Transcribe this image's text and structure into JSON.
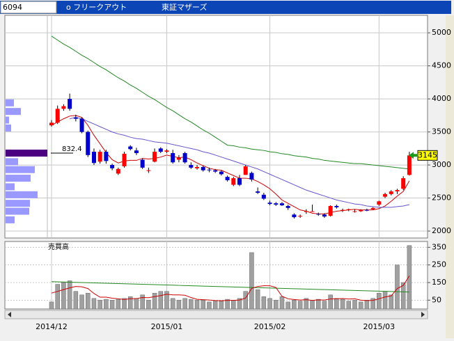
{
  "header": {
    "code": "6094",
    "name": "o フリークアウト",
    "market": "東証マザーズ"
  },
  "chart_data": {
    "type": "candlestick",
    "categories": [
      "2014/12",
      null,
      null,
      null,
      null,
      null,
      null,
      null,
      null,
      null,
      null,
      null,
      null,
      null,
      null,
      null,
      null,
      null,
      null,
      "2015/01",
      null,
      null,
      null,
      null,
      null,
      null,
      null,
      null,
      null,
      null,
      null,
      null,
      null,
      null,
      null,
      null,
      "2015/02",
      null,
      null,
      null,
      null,
      null,
      null,
      null,
      null,
      null,
      null,
      null,
      null,
      null,
      null,
      null,
      null,
      null,
      "2015/03",
      null,
      null,
      null,
      null,
      null
    ],
    "open": [
      3600,
      3640,
      3850,
      4000,
      3720,
      3700,
      3500,
      3200,
      3050,
      3200,
      3000,
      2870,
      2980,
      3280,
      3220,
      3080,
      2910,
      3050,
      3250,
      3200,
      3180,
      3080,
      3180,
      3000,
      2950,
      2970,
      2930,
      2920,
      2900,
      2820,
      2700,
      2800,
      2850,
      2880,
      2600,
      2550,
      2430,
      2420,
      2420,
      2380,
      2250,
      2220,
      2290,
      2300,
      2260,
      2250,
      2230,
      2380,
      2310,
      2320,
      2300,
      2300,
      2320,
      2330,
      2400,
      2520,
      2560,
      2600,
      2640,
      2850
    ],
    "high": [
      3680,
      3900,
      3920,
      4080,
      3760,
      3720,
      3520,
      3250,
      3230,
      3230,
      3020,
      2960,
      3200,
      3300,
      3260,
      3100,
      2960,
      3250,
      3270,
      3240,
      3230,
      3150,
      3200,
      3040,
      3000,
      2990,
      2960,
      2940,
      2920,
      2840,
      2820,
      2850,
      3000,
      2900,
      2660,
      2580,
      2460,
      2440,
      2440,
      2400,
      2270,
      2250,
      2330,
      2400,
      2280,
      2270,
      2390,
      2400,
      2340,
      2340,
      2330,
      2330,
      2340,
      2360,
      2460,
      2580,
      2620,
      2640,
      2830,
      3200
    ],
    "low": [
      3580,
      3620,
      3820,
      3820,
      3660,
      3480,
      3120,
      3000,
      3020,
      3020,
      2920,
      2850,
      2960,
      3220,
      3150,
      2940,
      2880,
      3040,
      3180,
      3180,
      3020,
      3040,
      3020,
      2940,
      2930,
      2900,
      2890,
      2880,
      2840,
      2750,
      2680,
      2680,
      2850,
      2750,
      2560,
      2470,
      2390,
      2380,
      2380,
      2320,
      2190,
      2200,
      2260,
      2290,
      2230,
      2200,
      2220,
      2340,
      2290,
      2300,
      2280,
      2290,
      2300,
      2320,
      2380,
      2500,
      2540,
      2560,
      2620,
      2840
    ],
    "close": [
      3640,
      3850,
      3890,
      3850,
      3700,
      3500,
      3150,
      3030,
      3200,
      3060,
      2950,
      2940,
      3170,
      3240,
      3180,
      2960,
      2920,
      3200,
      3200,
      3220,
      3040,
      3110,
      3040,
      2960,
      2970,
      2920,
      2920,
      2900,
      2860,
      2770,
      2800,
      2700,
      2980,
      2780,
      2580,
      2490,
      2410,
      2400,
      2390,
      2350,
      2210,
      2230,
      2300,
      2300,
      2250,
      2220,
      2380,
      2360,
      2320,
      2330,
      2300,
      2320,
      2310,
      2350,
      2450,
      2560,
      2600,
      2620,
      2800,
      3145
    ],
    "up_color": "#ff0000",
    "down_color": "#0000cc",
    "ylim": [
      1895,
      5265
    ],
    "yticks": [
      2000,
      2500,
      3000,
      3500,
      4000,
      4500,
      5000
    ],
    "grid": true,
    "lines": [
      {
        "color": "#cc0000",
        "values": [
          3600,
          3650,
          3700,
          3740,
          3750,
          3720,
          3600,
          3450,
          3320,
          3190,
          3080,
          3030,
          3060,
          3070,
          3070,
          3100,
          3090,
          3100,
          3120,
          3150,
          3130,
          3110,
          3120,
          3080,
          3030,
          2990,
          2950,
          2930,
          2920,
          2880,
          2840,
          2800,
          2800,
          2790,
          2750,
          2700,
          2640,
          2560,
          2470,
          2420,
          2370,
          2320,
          2300,
          2270,
          2260,
          2260,
          2280,
          2300,
          2310,
          2320,
          2330,
          2320,
          2320,
          2320,
          2340,
          2380,
          2450,
          2530,
          2600,
          2760
        ]
      },
      {
        "color": "#6655cc",
        "values": [
          null,
          null,
          null,
          3700,
          3720,
          3700,
          3660,
          3620,
          3580,
          3540,
          3500,
          3470,
          3450,
          3420,
          3400,
          3390,
          3370,
          3350,
          3340,
          3330,
          3310,
          3290,
          3270,
          3250,
          3230,
          3200,
          3180,
          3150,
          3120,
          3090,
          3060,
          3030,
          3000,
          2970,
          2940,
          2900,
          2860,
          2820,
          2780,
          2740,
          2700,
          2660,
          2620,
          2590,
          2560,
          2530,
          2500,
          2470,
          2450,
          2430,
          2410,
          2400,
          2380,
          2370,
          2360,
          2360,
          2360,
          2370,
          2380,
          2400
        ]
      },
      {
        "color": "#228822",
        "values": [
          4950,
          4890,
          4830,
          4780,
          4720,
          4660,
          4610,
          4550,
          4490,
          4440,
          4380,
          4320,
          4270,
          4210,
          4160,
          4100,
          4040,
          3990,
          3930,
          3870,
          3820,
          3760,
          3700,
          3650,
          3590,
          3530,
          3480,
          3420,
          3360,
          3300,
          3290,
          3270,
          3260,
          3240,
          3230,
          3220,
          3200,
          3190,
          3170,
          3160,
          3140,
          3130,
          3120,
          3100,
          3090,
          3070,
          3060,
          3050,
          3040,
          3030,
          3020,
          3020,
          3010,
          3000,
          2990,
          2980,
          2970,
          2960,
          2950,
          2940
        ]
      }
    ],
    "last_price": 3145,
    "price_profile": {
      "prices": [
        3940,
        3810,
        3680,
        3560,
        3180,
        3050,
        2930,
        2800,
        2670,
        2550,
        2420,
        2300,
        2170
      ],
      "values": [
        166,
        305,
        69,
        111,
        832.4,
        250,
        583,
        499,
        180,
        638,
        486,
        472,
        180
      ],
      "highlight_index": 4,
      "color": "#9999ff",
      "highlight_color": "#4b0082"
    },
    "volume": {
      "label": "売買高",
      "values": [
        40,
        140,
        150,
        160,
        100,
        80,
        90,
        60,
        50,
        55,
        50,
        55,
        60,
        70,
        60,
        80,
        50,
        90,
        100,
        100,
        60,
        50,
        60,
        55,
        50,
        50,
        40,
        45,
        45,
        55,
        50,
        60,
        100,
        320,
        110,
        70,
        60,
        50,
        70,
        40,
        50,
        45,
        60,
        50,
        55,
        45,
        80,
        60,
        55,
        45,
        50,
        40,
        50,
        60,
        90,
        100,
        80,
        250,
        150,
        360
      ],
      "color": "#a0a0a0",
      "ylim": [
        0,
        383
      ],
      "yticks": [
        50,
        150,
        250,
        350
      ],
      "lines": [
        {
          "color": "#228822",
          "values": [
            155,
            154,
            153,
            152,
            151,
            150,
            149,
            148,
            147,
            146,
            145,
            144,
            143,
            142,
            141,
            140,
            139,
            138,
            137,
            136,
            135,
            134,
            133,
            132,
            131,
            130,
            129,
            128,
            127,
            126,
            125,
            124,
            123,
            122,
            121,
            120,
            119,
            118,
            117,
            116,
            115,
            114,
            113,
            112,
            111,
            110,
            109,
            108,
            107,
            106,
            105,
            104,
            103,
            102,
            101,
            100,
            99,
            98,
            97,
            96
          ]
        },
        {
          "color": "#cc0000",
          "values": [
            90,
            100,
            110,
            120,
            128,
            126,
            116,
            88,
            67,
            67,
            61,
            58,
            54,
            58,
            59,
            65,
            64,
            70,
            76,
            84,
            80,
            80,
            78,
            65,
            55,
            53,
            51,
            48,
            47,
            49,
            49,
            51,
            62,
            117,
            128,
            132,
            132,
            122,
            72,
            58,
            54,
            51,
            53,
            49,
            52,
            51,
            57,
            58,
            59,
            57,
            58,
            50,
            48,
            49,
            58,
            68,
            74,
            116,
            134,
            188
          ]
        }
      ]
    }
  }
}
